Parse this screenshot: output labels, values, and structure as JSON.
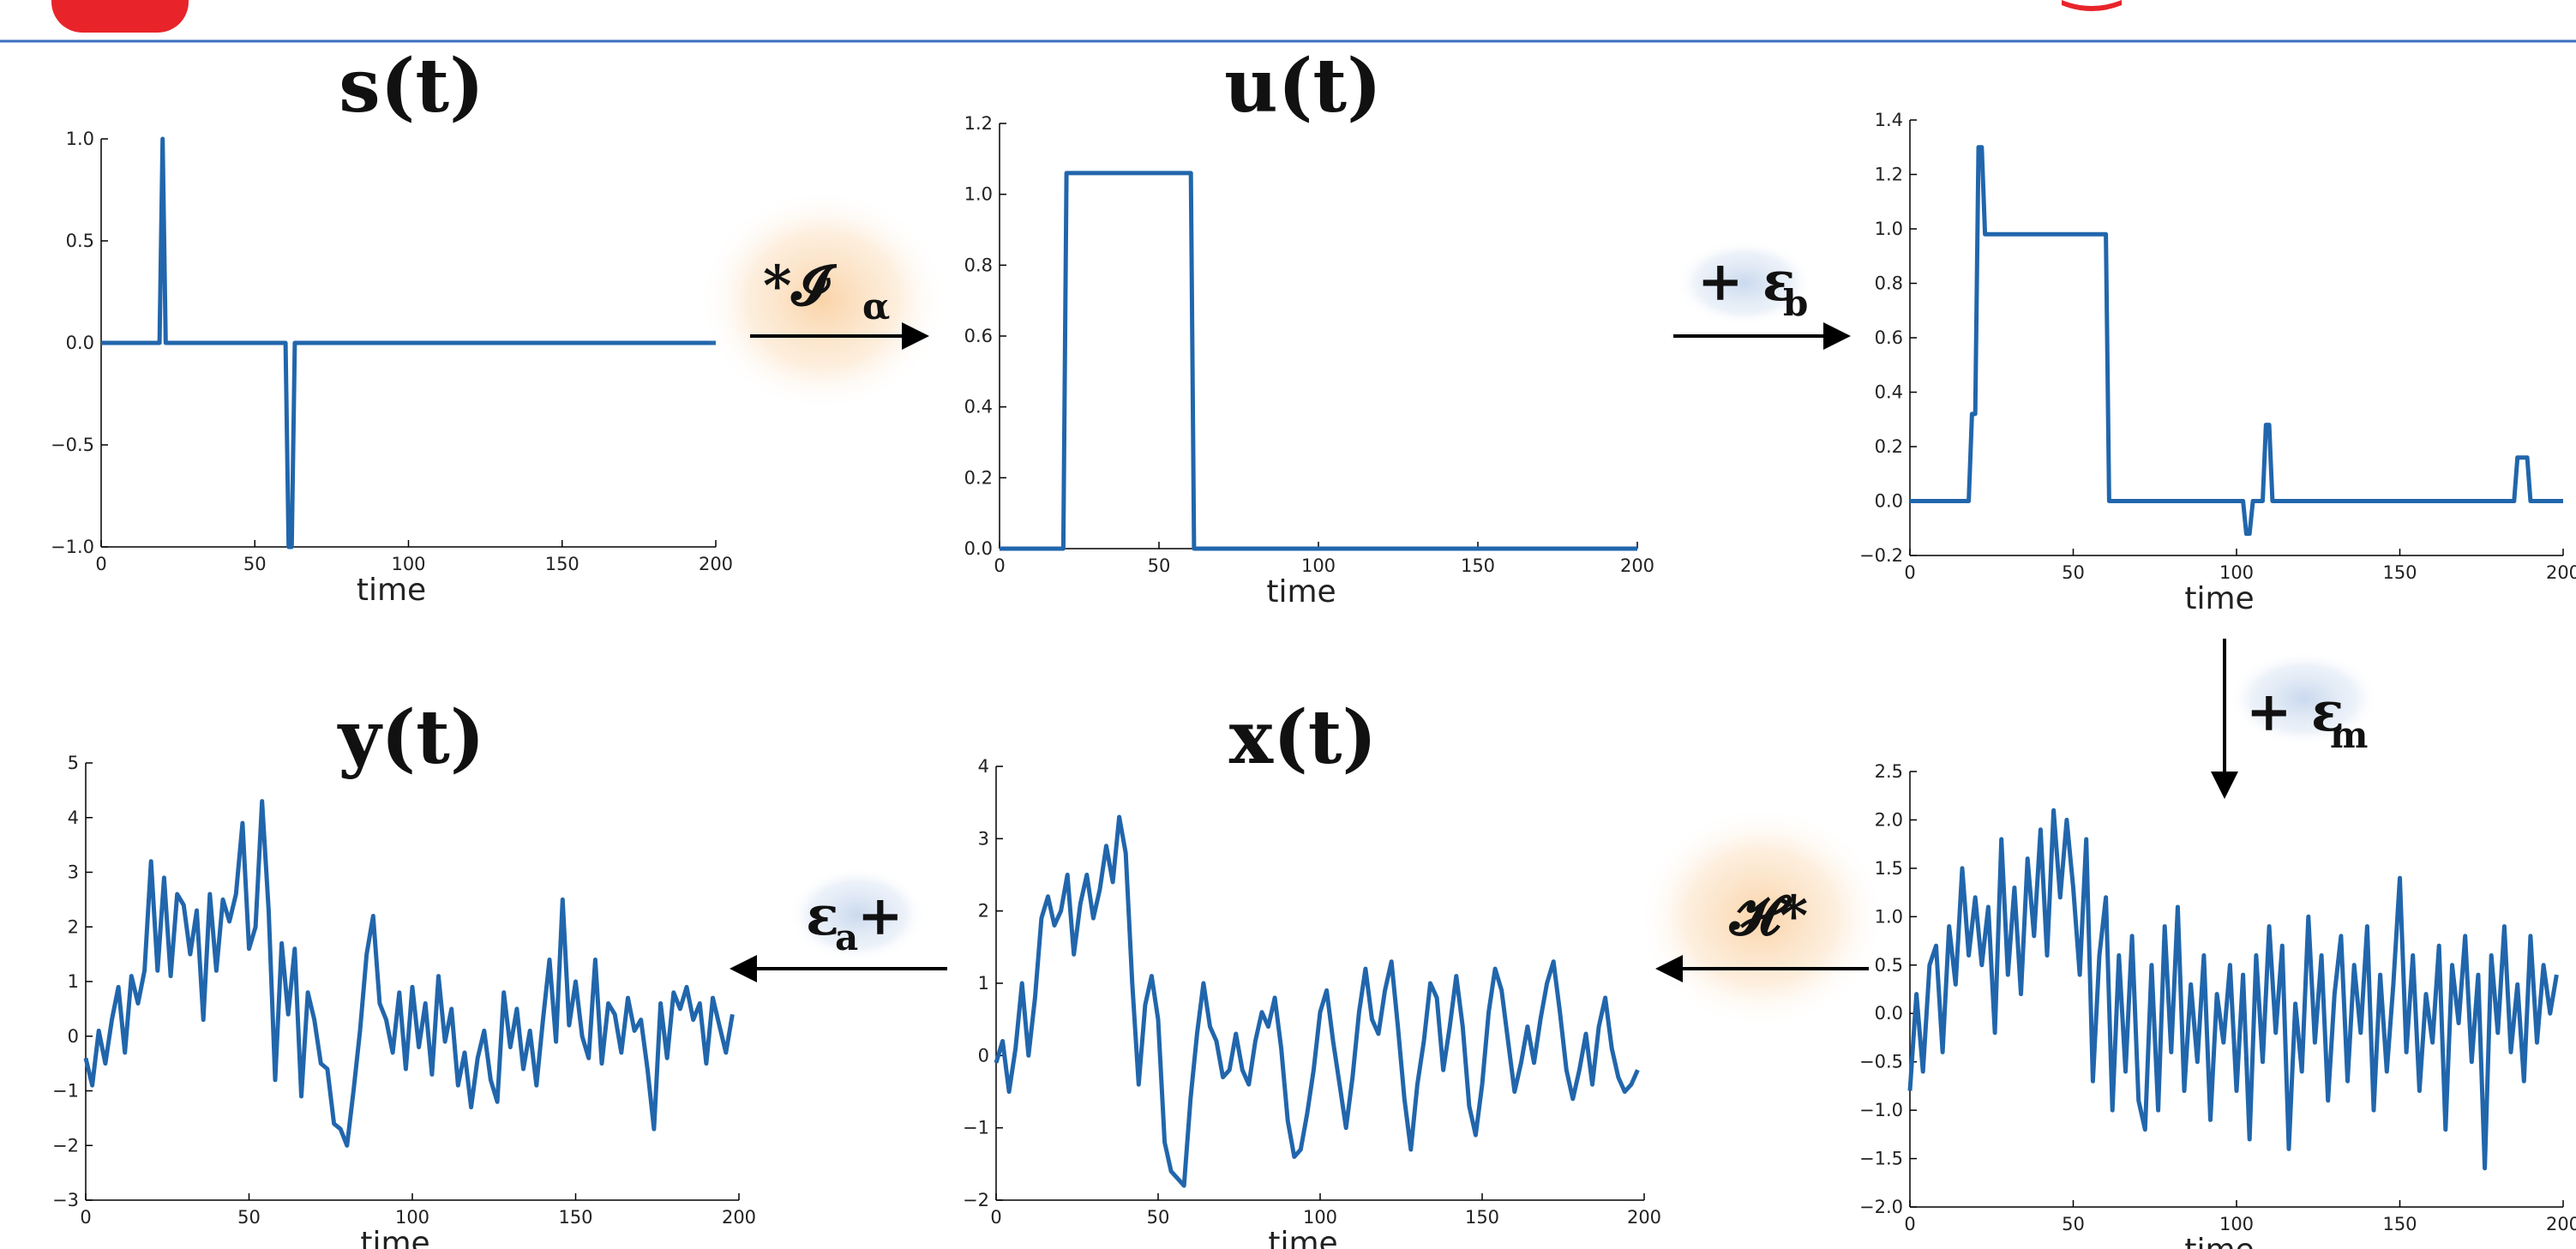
{
  "colors": {
    "line": "#2166ac",
    "header_rule": "#3a6fbf",
    "header_badge": "#e8242a",
    "glow_orange": "#f7b56a",
    "glow_blue": "#b9cde8",
    "arrow": "#000000"
  },
  "operators": [
    {
      "id": "conv-ia",
      "main": "*𝓘",
      "sub": "α",
      "glow": "orange"
    },
    {
      "id": "eps-b",
      "main": "+ ε",
      "sub": "b",
      "glow": "blue"
    },
    {
      "id": "eps-m",
      "main": "+ ε",
      "sub": "m",
      "glow": "blue"
    },
    {
      "id": "conv-h",
      "main": "𝓗*",
      "sub": "",
      "glow": "orange"
    },
    {
      "id": "eps-a",
      "main": "ε",
      "sub": "a",
      "tail": " +",
      "glow": "blue"
    }
  ],
  "chart_data": [
    {
      "id": "s",
      "type": "line",
      "title": "s(t)",
      "xlabel": "time",
      "xlim": [
        0,
        200
      ],
      "ylim": [
        -1.0,
        1.0
      ],
      "xticks": [
        "0",
        "50",
        "100",
        "150",
        "200"
      ],
      "xtick_values": [
        0,
        50,
        100,
        150,
        200
      ],
      "yticks": [
        "−1.0",
        "−0.5",
        "0.0",
        "0.5",
        "1.0"
      ],
      "ytick_values": [
        -1.0,
        -0.5,
        0.0,
        0.5,
        1.0
      ],
      "x": [
        0,
        19,
        20,
        21,
        22,
        60,
        61,
        62,
        63,
        200
      ],
      "y": [
        0,
        0,
        1.0,
        0,
        0,
        0,
        -1.0,
        -1.0,
        0,
        0
      ]
    },
    {
      "id": "u",
      "type": "line",
      "title": "u(t)",
      "xlabel": "time",
      "xlim": [
        0,
        200
      ],
      "ylim": [
        0.0,
        1.2
      ],
      "xticks": [
        "0",
        "50",
        "100",
        "150",
        "200"
      ],
      "xtick_values": [
        0,
        50,
        100,
        150,
        200
      ],
      "yticks": [
        "0.0",
        "0.2",
        "0.4",
        "0.6",
        "0.8",
        "1.0",
        "1.2"
      ],
      "ytick_values": [
        0.0,
        0.2,
        0.4,
        0.6,
        0.8,
        1.0,
        1.2
      ],
      "x": [
        0,
        20,
        21,
        60,
        61,
        200
      ],
      "y": [
        0,
        0,
        1.06,
        1.06,
        0,
        0
      ]
    },
    {
      "id": "u-plus-eb",
      "type": "line",
      "title": "",
      "xlabel": "time",
      "xlim": [
        0,
        200
      ],
      "ylim": [
        -0.2,
        1.4
      ],
      "xticks": [
        "0",
        "50",
        "100",
        "150",
        "200"
      ],
      "xtick_values": [
        0,
        50,
        100,
        150,
        200
      ],
      "yticks": [
        "−0.2",
        "0.0",
        "0.2",
        "0.4",
        "0.6",
        "0.8",
        "1.0",
        "1.2",
        "1.4"
      ],
      "ytick_values": [
        -0.2,
        0.0,
        0.2,
        0.4,
        0.6,
        0.8,
        1.0,
        1.2,
        1.4
      ],
      "x": [
        0,
        18,
        19,
        20,
        21,
        22,
        23,
        24,
        60,
        61,
        102,
        103,
        104,
        105,
        108,
        109,
        110,
        111,
        185,
        186,
        189,
        190,
        200
      ],
      "y": [
        0,
        0,
        0.32,
        0.32,
        1.3,
        1.3,
        0.98,
        0.98,
        0.98,
        0,
        0,
        -0.12,
        -0.12,
        0,
        0,
        0.28,
        0.28,
        0,
        0,
        0.16,
        0.16,
        0,
        0
      ]
    },
    {
      "id": "y",
      "type": "line",
      "title": "y(t)",
      "xlabel": "time",
      "xlim": [
        0,
        200
      ],
      "ylim": [
        -3,
        5
      ],
      "xticks": [
        "0",
        "50",
        "100",
        "150",
        "200"
      ],
      "xtick_values": [
        0,
        50,
        100,
        150,
        200
      ],
      "yticks": [
        "−3",
        "−2",
        "−1",
        "0",
        "1",
        "2",
        "3",
        "4",
        "5"
      ],
      "ytick_values": [
        -3,
        -2,
        -1,
        0,
        1,
        2,
        3,
        4,
        5
      ],
      "x": [
        0,
        2,
        4,
        6,
        8,
        10,
        12,
        14,
        16,
        18,
        20,
        22,
        24,
        26,
        28,
        30,
        32,
        34,
        36,
        38,
        40,
        42,
        44,
        46,
        48,
        50,
        52,
        54,
        56,
        58,
        60,
        62,
        64,
        66,
        68,
        70,
        72,
        74,
        76,
        78,
        80,
        82,
        84,
        86,
        88,
        90,
        92,
        94,
        96,
        98,
        100,
        102,
        104,
        106,
        108,
        110,
        112,
        114,
        116,
        118,
        120,
        122,
        124,
        126,
        128,
        130,
        132,
        134,
        136,
        138,
        140,
        142,
        144,
        146,
        148,
        150,
        152,
        154,
        156,
        158,
        160,
        162,
        164,
        166,
        168,
        170,
        172,
        174,
        176,
        178,
        180,
        182,
        184,
        186,
        188,
        190,
        192,
        194,
        196,
        198
      ],
      "y": [
        -0.4,
        -0.9,
        0.1,
        -0.5,
        0.3,
        0.9,
        -0.3,
        1.1,
        0.6,
        1.2,
        3.2,
        1.2,
        2.9,
        1.1,
        2.6,
        2.4,
        1.5,
        2.3,
        0.3,
        2.6,
        1.2,
        2.5,
        2.1,
        2.6,
        3.9,
        1.6,
        2.0,
        4.3,
        2.3,
        -0.8,
        1.7,
        0.4,
        1.6,
        -1.1,
        0.8,
        0.3,
        -0.5,
        -0.6,
        -1.6,
        -1.7,
        -2.0,
        -1.0,
        0.1,
        1.5,
        2.2,
        0.6,
        0.3,
        -0.3,
        0.8,
        -0.6,
        0.9,
        -0.2,
        0.6,
        -0.7,
        1.1,
        -0.1,
        0.5,
        -0.9,
        -0.3,
        -1.3,
        -0.4,
        0.1,
        -0.8,
        -1.2,
        0.8,
        -0.2,
        0.5,
        -0.6,
        0.1,
        -0.9,
        0.3,
        1.4,
        -0.1,
        2.5,
        0.2,
        1.0,
        0.0,
        -0.4,
        1.4,
        -0.5,
        0.6,
        0.4,
        -0.3,
        0.7,
        0.1,
        0.3,
        -0.6,
        -1.7,
        0.6,
        -0.4,
        0.8,
        0.5,
        0.9,
        0.3,
        0.6,
        -0.5,
        0.7,
        0.2,
        -0.3,
        0.4
      ]
    },
    {
      "id": "x",
      "type": "line",
      "title": "x(t)",
      "xlabel": "time",
      "xlim": [
        0,
        200
      ],
      "ylim": [
        -2,
        4
      ],
      "xticks": [
        "0",
        "50",
        "100",
        "150",
        "200"
      ],
      "xtick_values": [
        0,
        50,
        100,
        150,
        200
      ],
      "yticks": [
        "−2",
        "−1",
        "0",
        "1",
        "2",
        "3",
        "4"
      ],
      "ytick_values": [
        -2,
        -1,
        0,
        1,
        2,
        3,
        4
      ],
      "x": [
        0,
        2,
        4,
        6,
        8,
        10,
        12,
        14,
        16,
        18,
        20,
        22,
        24,
        26,
        28,
        30,
        32,
        34,
        36,
        38,
        40,
        42,
        44,
        46,
        48,
        50,
        52,
        54,
        56,
        58,
        60,
        62,
        64,
        66,
        68,
        70,
        72,
        74,
        76,
        78,
        80,
        82,
        84,
        86,
        88,
        90,
        92,
        94,
        96,
        98,
        100,
        102,
        104,
        106,
        108,
        110,
        112,
        114,
        116,
        118,
        120,
        122,
        124,
        126,
        128,
        130,
        132,
        134,
        136,
        138,
        140,
        142,
        144,
        146,
        148,
        150,
        152,
        154,
        156,
        158,
        160,
        162,
        164,
        166,
        168,
        170,
        172,
        174,
        176,
        178,
        180,
        182,
        184,
        186,
        188,
        190,
        192,
        194,
        196,
        198
      ],
      "y": [
        -0.1,
        0.2,
        -0.5,
        0.1,
        1.0,
        0.0,
        0.8,
        1.9,
        2.2,
        1.8,
        2.0,
        2.5,
        1.4,
        2.1,
        2.5,
        1.9,
        2.3,
        2.9,
        2.4,
        3.3,
        2.8,
        1.0,
        -0.4,
        0.7,
        1.1,
        0.5,
        -1.2,
        -1.6,
        -1.7,
        -1.8,
        -0.6,
        0.3,
        1.0,
        0.4,
        0.2,
        -0.3,
        -0.2,
        0.3,
        -0.2,
        -0.4,
        0.2,
        0.6,
        0.4,
        0.8,
        0.1,
        -0.9,
        -1.4,
        -1.3,
        -0.8,
        -0.2,
        0.6,
        0.9,
        0.2,
        -0.4,
        -1.0,
        -0.3,
        0.6,
        1.2,
        0.5,
        0.3,
        0.9,
        1.3,
        0.4,
        -0.6,
        -1.3,
        -0.4,
        0.2,
        1.0,
        0.8,
        -0.2,
        0.4,
        1.1,
        0.4,
        -0.7,
        -1.1,
        -0.4,
        0.6,
        1.2,
        0.9,
        0.2,
        -0.5,
        -0.1,
        0.4,
        -0.1,
        0.5,
        1.0,
        1.3,
        0.6,
        -0.2,
        -0.6,
        -0.2,
        0.3,
        -0.4,
        0.4,
        0.8,
        0.1,
        -0.3,
        -0.5,
        -0.4,
        -0.2
      ]
    },
    {
      "id": "x-plus-em",
      "type": "line",
      "title": "",
      "xlabel": "time",
      "xlim": [
        0,
        200
      ],
      "ylim": [
        -2.0,
        2.5
      ],
      "xticks": [
        "0",
        "50",
        "100",
        "150",
        "200"
      ],
      "xtick_values": [
        0,
        50,
        100,
        150,
        200
      ],
      "yticks": [
        "−2.0",
        "−1.5",
        "−1.0",
        "−0.5",
        "0.0",
        "0.5",
        "1.0",
        "1.5",
        "2.0",
        "2.5"
      ],
      "ytick_values": [
        -2.0,
        -1.5,
        -1.0,
        -0.5,
        0.0,
        0.5,
        1.0,
        1.5,
        2.0,
        2.5
      ],
      "x": [
        0,
        2,
        4,
        6,
        8,
        10,
        12,
        14,
        16,
        18,
        20,
        22,
        24,
        26,
        28,
        30,
        32,
        34,
        36,
        38,
        40,
        42,
        44,
        46,
        48,
        50,
        52,
        54,
        56,
        58,
        60,
        62,
        64,
        66,
        68,
        70,
        72,
        74,
        76,
        78,
        80,
        82,
        84,
        86,
        88,
        90,
        92,
        94,
        96,
        98,
        100,
        102,
        104,
        106,
        108,
        110,
        112,
        114,
        116,
        118,
        120,
        122,
        124,
        126,
        128,
        130,
        132,
        134,
        136,
        138,
        140,
        142,
        144,
        146,
        148,
        150,
        152,
        154,
        156,
        158,
        160,
        162,
        164,
        166,
        168,
        170,
        172,
        174,
        176,
        178,
        180,
        182,
        184,
        186,
        188,
        190,
        192,
        194,
        196,
        198
      ],
      "y": [
        -0.8,
        0.2,
        -0.6,
        0.5,
        0.7,
        -0.4,
        0.9,
        0.3,
        1.5,
        0.6,
        1.2,
        0.5,
        1.1,
        -0.2,
        1.8,
        0.4,
        1.3,
        0.2,
        1.6,
        0.8,
        1.9,
        0.6,
        2.1,
        1.2,
        2.0,
        1.3,
        0.4,
        1.8,
        -0.7,
        0.6,
        1.2,
        -1.0,
        0.6,
        -0.6,
        0.8,
        -0.9,
        -1.2,
        0.5,
        -1.0,
        0.9,
        -0.4,
        1.1,
        -0.8,
        0.3,
        -0.5,
        0.6,
        -1.1,
        0.2,
        -0.3,
        0.5,
        -0.8,
        0.4,
        -1.3,
        0.6,
        -0.5,
        0.9,
        -0.2,
        0.7,
        -1.4,
        0.1,
        -0.6,
        1.0,
        -0.3,
        0.6,
        -0.9,
        0.2,
        0.8,
        -0.7,
        0.5,
        -0.2,
        0.9,
        -1.0,
        0.4,
        -0.6,
        0.3,
        1.4,
        -0.4,
        0.6,
        -0.8,
        0.2,
        -0.3,
        0.7,
        -1.2,
        0.5,
        -0.1,
        0.8,
        -0.5,
        0.4,
        -1.6,
        0.6,
        -0.2,
        0.9,
        -0.4,
        0.3,
        -0.7,
        0.8,
        -0.3,
        0.5,
        0.0,
        0.4
      ]
    }
  ]
}
